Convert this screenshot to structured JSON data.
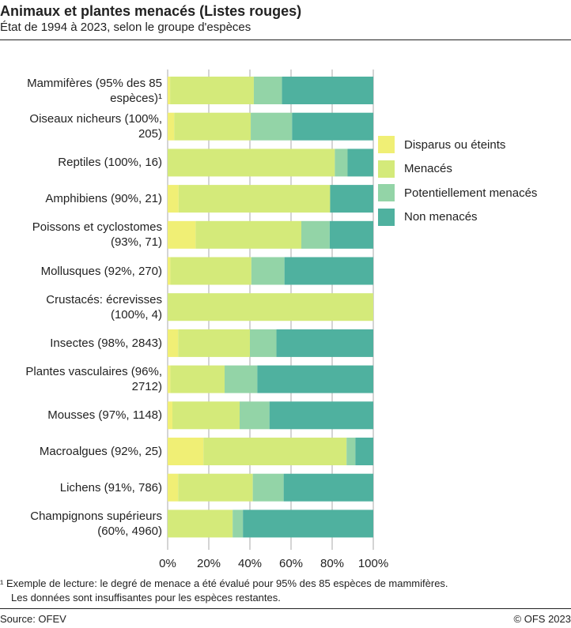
{
  "header": {
    "title": "Animaux et plantes menacés (Listes rouges)",
    "subtitle": "État de 1994 à 2023, selon le groupe d'espèces"
  },
  "chart_data": {
    "type": "bar",
    "orientation": "horizontal",
    "stacked": true,
    "xlim": [
      0,
      100
    ],
    "x_ticks": [
      "0%",
      "20%",
      "40%",
      "60%",
      "80%",
      "100%"
    ],
    "grid": true,
    "legend_position": "right",
    "categories": [
      {
        "lines": [
          "Mammifères (95% des 85",
          "espèces)¹"
        ]
      },
      {
        "lines": [
          "Oiseaux nicheurs (100%,",
          "205)"
        ]
      },
      {
        "lines": [
          "Reptiles (100%, 16)"
        ]
      },
      {
        "lines": [
          "Amphibiens (90%, 21)"
        ]
      },
      {
        "lines": [
          "Poissons et cyclostomes",
          "(93%, 71)"
        ]
      },
      {
        "lines": [
          "Mollusques (92%, 270)"
        ]
      },
      {
        "lines": [
          "Crustacés: écrevisses",
          "(100%, 4)"
        ]
      },
      {
        "lines": [
          "Insectes (98%, 2843)"
        ]
      },
      {
        "lines": [
          "Plantes vasculaires (96%,",
          "2712)"
        ]
      },
      {
        "lines": [
          "Mousses (97%, 1148)"
        ]
      },
      {
        "lines": [
          "Macroalgues (92%, 25)"
        ]
      },
      {
        "lines": [
          "Lichens (91%, 786)"
        ]
      },
      {
        "lines": [
          "Champignons supérieurs",
          "(60%, 4960)"
        ]
      }
    ],
    "series": [
      {
        "name": "Disparus ou éteints",
        "color": "#f0ef75",
        "values": [
          1.2,
          3.2,
          0,
          5.3,
          13.6,
          1.3,
          0,
          5.1,
          1.3,
          2.3,
          17.4,
          5.1,
          0
        ]
      },
      {
        "name": "Menacés",
        "color": "#d4ea7a",
        "values": [
          40.7,
          37.2,
          81.3,
          73.7,
          51.4,
          39.4,
          100,
          34.9,
          26.4,
          32.7,
          69.6,
          36.3,
          31.6
        ]
      },
      {
        "name": "Potentiellement menacés",
        "color": "#93d4a7",
        "values": [
          13.7,
          20.1,
          6.2,
          0,
          13.8,
          16.1,
          0,
          12.9,
          15.9,
          14.5,
          4.3,
          15.0,
          5.0
        ]
      },
      {
        "name": "Non menacés",
        "color": "#4fb19f",
        "values": [
          44.4,
          39.5,
          12.5,
          21.0,
          21.2,
          43.2,
          0,
          47.1,
          56.4,
          50.5,
          8.7,
          43.6,
          63.4
        ]
      }
    ]
  },
  "footnote": {
    "line1": "¹   Exemple de lecture: le degré de menace a été évalué pour 95% des 85 espèces de mammifères.",
    "line2": "Les données sont insuffisantes pour les espèces restantes."
  },
  "footer": {
    "source": "Source: OFEV",
    "copyright": "© OFS 2023"
  }
}
